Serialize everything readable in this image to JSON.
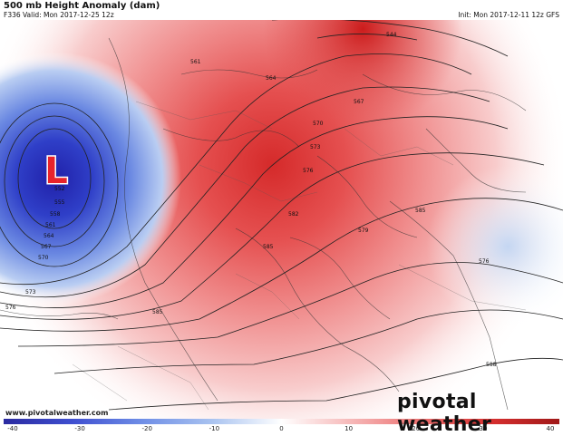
{
  "header": {
    "title": "500 mb Height Anomaly (dam)",
    "valid": "F336 Valid: Mon 2017-12-25 12z",
    "init": "Init: Mon 2017-12-11 12z GFS"
  },
  "map": {
    "low_symbol": "L",
    "low_color": "#e8232b",
    "contour_labels": [
      "544",
      "561",
      "564",
      "567",
      "570",
      "573",
      "576",
      "579",
      "582",
      "585",
      "552",
      "555",
      "558",
      "561",
      "564",
      "567",
      "570",
      "573",
      "576",
      "585",
      "588",
      "576",
      "585"
    ]
  },
  "colorbar": {
    "ticks": [
      "-40",
      "-30",
      "-20",
      "-10",
      "0",
      "10",
      "20",
      "30",
      "40"
    ],
    "colors": [
      "#2a2aa0",
      "#3f4fd0",
      "#6f8ee6",
      "#a9c3f0",
      "#ffffff",
      "#f6b8b8",
      "#ec7070",
      "#d83030",
      "#a01818"
    ]
  },
  "footer": {
    "url": "www.pivotalweather.com",
    "brand": "pivotal weather"
  }
}
